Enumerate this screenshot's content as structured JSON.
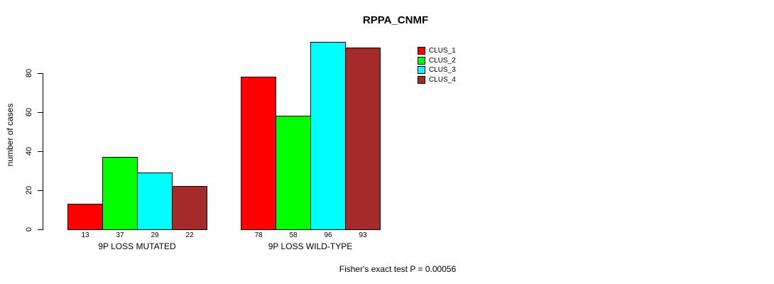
{
  "title": "RPPA_CNMF",
  "annotation": "Fisher's exact test P = 0.00056",
  "chart_data": {
    "type": "bar",
    "title": "RPPA_CNMF",
    "xlabel": "",
    "ylabel": "number of cases",
    "categories": [
      "9P LOSS MUTATED",
      "9P LOSS WILD-TYPE"
    ],
    "series": [
      {
        "name": "CLUS_1",
        "color": "#ff0000",
        "values": [
          13,
          78
        ]
      },
      {
        "name": "CLUS_2",
        "color": "#00ff00",
        "values": [
          37,
          58
        ]
      },
      {
        "name": "CLUS_3",
        "color": "#00ffff",
        "values": [
          29,
          96
        ]
      },
      {
        "name": "CLUS_4",
        "color": "#a52a2a",
        "values": [
          22,
          93
        ]
      }
    ],
    "yticks": [
      0,
      20,
      40,
      60,
      80
    ],
    "ylim": [
      0,
      96
    ],
    "grid": false,
    "bar_value_labels_shown": true,
    "legend_position": "top-right",
    "legend_entries": [
      "CLUS_1",
      "CLUS_2",
      "CLUS_3",
      "CLUS_4"
    ],
    "annotation": "Fisher's exact test P = 0.00056"
  }
}
